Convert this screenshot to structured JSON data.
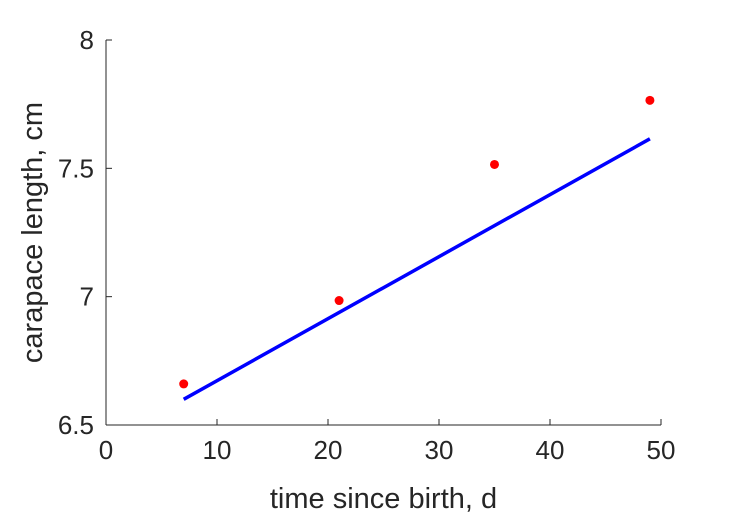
{
  "chart_data": {
    "type": "scatter",
    "title": "",
    "xlabel": "time since birth, d",
    "ylabel": "carapace length, cm",
    "xlim": [
      0,
      50
    ],
    "ylim": [
      6.5,
      8
    ],
    "xticks": [
      0,
      10,
      20,
      30,
      40,
      50
    ],
    "xtick_labels": [
      "0",
      "10",
      "20",
      "30",
      "40",
      "50"
    ],
    "yticks": [
      6.5,
      7,
      7.5,
      8
    ],
    "ytick_labels": [
      "6.5",
      "7",
      "7.5",
      "8"
    ],
    "grid": false,
    "series": [
      {
        "kind": "scatter",
        "color": "#ff0000",
        "x": [
          7,
          21,
          35,
          49
        ],
        "y": [
          6.66,
          6.985,
          7.515,
          7.765
        ]
      },
      {
        "kind": "line",
        "color": "#0000ff",
        "x": [
          7,
          49
        ],
        "y": [
          6.6,
          7.615
        ]
      }
    ]
  }
}
